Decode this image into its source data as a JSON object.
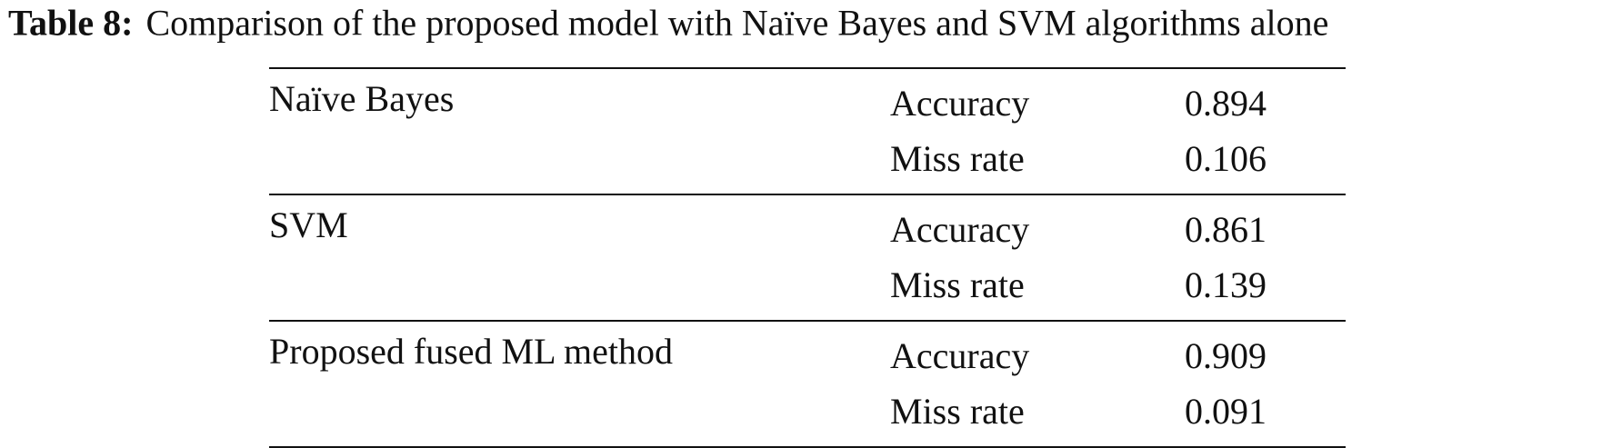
{
  "caption": {
    "label": "Table 8:",
    "text": "Comparison of the proposed model with Naïve Bayes and SVM algorithms alone"
  },
  "table": {
    "rows": [
      {
        "model": "Naïve Bayes",
        "metrics": [
          {
            "name": "Accuracy",
            "value": 0.894
          },
          {
            "name": "Miss rate",
            "value": 0.106
          }
        ]
      },
      {
        "model": "SVM",
        "metrics": [
          {
            "name": "Accuracy",
            "value": 0.861
          },
          {
            "name": "Miss rate",
            "value": 0.139
          }
        ]
      },
      {
        "model": "Proposed fused ML method",
        "metrics": [
          {
            "name": "Accuracy",
            "value": 0.909
          },
          {
            "name": "Miss rate",
            "value": 0.091
          }
        ]
      }
    ]
  }
}
